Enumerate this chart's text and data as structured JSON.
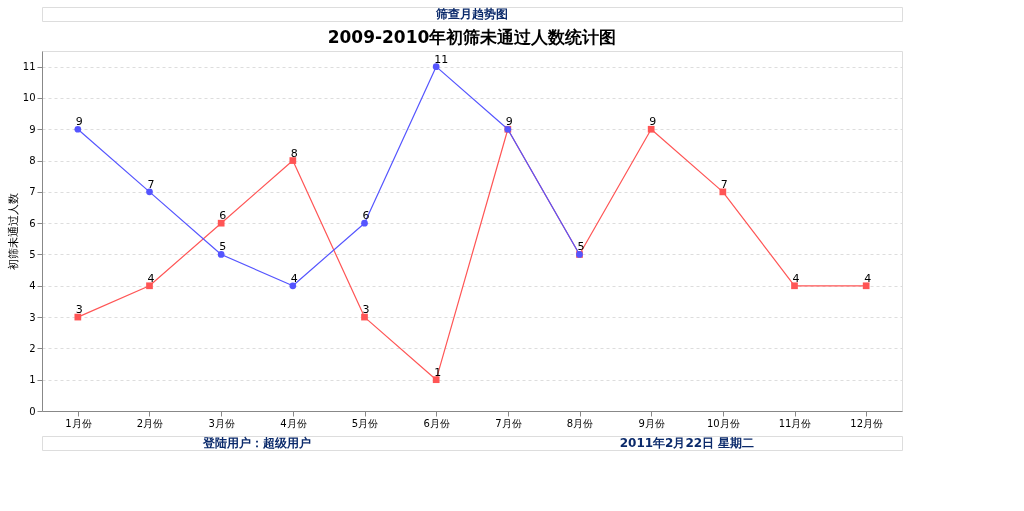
{
  "chart_data": {
    "type": "line",
    "title": "2009-2010年初筛未通过人数统计图",
    "ylabel": "初筛未通过人数",
    "categories": [
      "1月份",
      "2月份",
      "3月份",
      "4月份",
      "5月份",
      "6月份",
      "7月份",
      "8月份",
      "9月份",
      "10月份",
      "11月份",
      "12月份"
    ],
    "series": [
      {
        "color": "#ff5555",
        "marker": "square",
        "values": [
          3,
          4,
          6,
          8,
          3,
          1,
          9,
          5,
          9,
          7,
          4,
          4
        ]
      },
      {
        "color": "#5555ff",
        "marker": "circle",
        "values": [
          9,
          7,
          5,
          4,
          6,
          11,
          9,
          5,
          null,
          null,
          null,
          null
        ],
        "value_labels": [
          "9",
          "7",
          "5",
          "4",
          "6",
          "11",
          null,
          null,
          null,
          null,
          null,
          null
        ]
      }
    ],
    "ylim": [
      0,
      11.5
    ],
    "yticks": [
      0,
      1,
      2,
      3,
      4,
      5,
      6,
      7,
      8,
      9,
      10,
      11
    ],
    "grid": "y",
    "line_style": "solid",
    "data_labels": true,
    "annotations": [
      "筛查月趋势图",
      "登陆用户：超级用户",
      "2011年2月22日  星期二"
    ]
  }
}
